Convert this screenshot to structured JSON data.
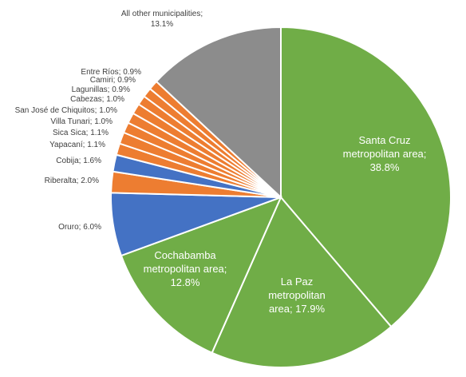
{
  "chart_data": {
    "type": "pie",
    "slices": [
      {
        "label": "Santa Cruz metropolitan area",
        "value": 38.8,
        "label_text": [
          "Santa Cruz",
          "metropolitan area;",
          "38.8%"
        ],
        "color": "#70AD47",
        "inside": true
      },
      {
        "label": "La Paz metropolitan area",
        "value": 17.9,
        "label_text": [
          "La Paz",
          "metropolitan",
          "area; 17.9%"
        ],
        "color": "#70AD47",
        "inside": true
      },
      {
        "label": "Cochabamba metropolitan area",
        "value": 12.8,
        "label_text": [
          "Cochabamba",
          "metropolitan area;",
          "12.8%"
        ],
        "color": "#70AD47",
        "inside": true
      },
      {
        "label": "Oruro",
        "value": 6.0,
        "label_text": [
          "Oruro; 6.0%"
        ],
        "color": "#4472C4",
        "inside": false
      },
      {
        "label": "Riberalta",
        "value": 2.0,
        "label_text": [
          "Riberalta; 2.0%"
        ],
        "color": "#ED7D31",
        "inside": false
      },
      {
        "label": "Cobija",
        "value": 1.6,
        "label_text": [
          "Cobija; 1.6%"
        ],
        "color": "#4472C4",
        "inside": false
      },
      {
        "label": "Yapacaní",
        "value": 1.1,
        "label_text": [
          "Yapacaní; 1.1%"
        ],
        "color": "#ED7D31",
        "inside": false
      },
      {
        "label": "Sica Sica",
        "value": 1.1,
        "label_text": [
          "Sica Sica; 1.1%"
        ],
        "color": "#ED7D31",
        "inside": false
      },
      {
        "label": "Villa Tunari",
        "value": 1.0,
        "label_text": [
          "Villa Tunari; 1.0%"
        ],
        "color": "#ED7D31",
        "inside": false
      },
      {
        "label": "San José de Chiquitos",
        "value": 1.0,
        "label_text": [
          "San José de Chiquitos; 1.0%"
        ],
        "color": "#ED7D31",
        "inside": false
      },
      {
        "label": "Cabezas",
        "value": 1.0,
        "label_text": [
          "Cabezas; 1.0%"
        ],
        "color": "#ED7D31",
        "inside": false
      },
      {
        "label": "Lagunillas",
        "value": 0.9,
        "label_text": [
          "Lagunillas; 0.9%"
        ],
        "color": "#ED7D31",
        "inside": false
      },
      {
        "label": "Camiri",
        "value": 0.9,
        "label_text": [
          "Camiri; 0.9%"
        ],
        "color": "#ED7D31",
        "inside": false
      },
      {
        "label": "Entre Ríos",
        "value": 0.9,
        "label_text": [
          "Entre Ríos; 0.9%"
        ],
        "color": "#ED7D31",
        "inside": false
      },
      {
        "label": "All other municipalities",
        "value": 13.1,
        "label_text": [
          "All other municipalities;",
          "13.1%"
        ],
        "color": "#8C8C8C",
        "inside": false
      }
    ],
    "start": "top",
    "direction": "clockwise",
    "title": "",
    "legend": "none"
  }
}
